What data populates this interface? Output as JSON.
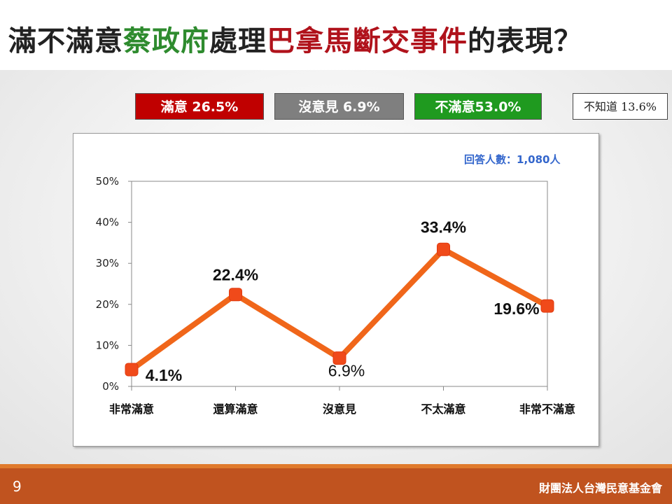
{
  "title": {
    "seg1": "滿不滿意",
    "seg2": "蔡政府",
    "seg3": "處理",
    "seg4": "巴拿馬斷交事件",
    "seg5": "的表現？"
  },
  "summary": {
    "satisfied": "滿意 26.5%",
    "no_opinion": "沒意見 6.9%",
    "dissatisfied": "不滿意53.0%",
    "dont_know": "不知道 13.6%"
  },
  "respondents": "回答人數：1,080人",
  "chart_data": {
    "type": "line",
    "categories": [
      "非常滿意",
      "還算滿意",
      "沒意見",
      "不太滿意",
      "非常不滿意"
    ],
    "values": [
      4.1,
      22.4,
      6.9,
      33.4,
      19.6
    ],
    "data_labels": [
      "4.1%",
      "22.4%",
      "6.9%",
      "33.4%",
      "19.6%"
    ],
    "yticks": [
      "0%",
      "10%",
      "20%",
      "30%",
      "40%",
      "50%"
    ],
    "ylim": [
      0,
      50
    ],
    "line_color": "#f0661a",
    "marker_color": "#f04a1a",
    "grid": false
  },
  "footer": {
    "page_number": "9",
    "organization": "財團法人台灣民意基金會",
    "bar_color": "#c0531f"
  }
}
